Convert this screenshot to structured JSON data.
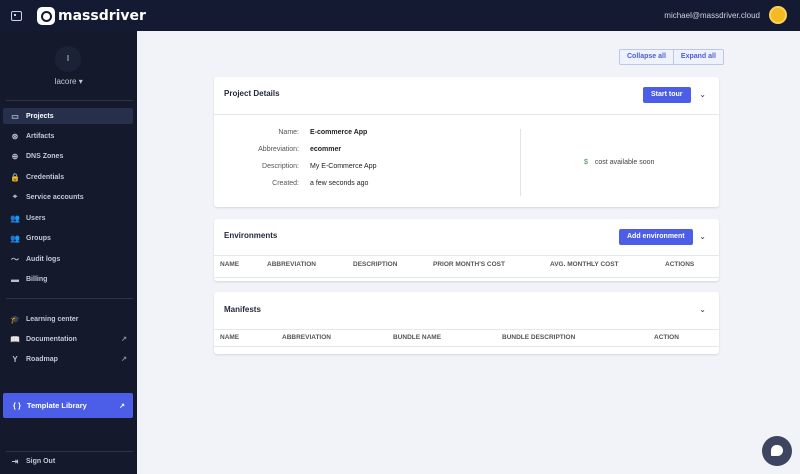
{
  "topbar": {
    "brand": "massdriver",
    "user_email": "michael@massdriver.cloud"
  },
  "sidebar": {
    "org_initial": "I",
    "org_name": "Iacore ▾",
    "items": [
      {
        "label": "Projects",
        "icon": "folder-icon",
        "glyph": "▭"
      },
      {
        "label": "Artifacts",
        "icon": "artifact-icon",
        "glyph": "⊛"
      },
      {
        "label": "DNS Zones",
        "icon": "globe-icon",
        "glyph": "⊕"
      },
      {
        "label": "Credentials",
        "icon": "lock-icon",
        "glyph": "🔒"
      },
      {
        "label": "Service accounts",
        "icon": "service-account-icon",
        "glyph": "⌖"
      },
      {
        "label": "Users",
        "icon": "users-icon",
        "glyph": "👥"
      },
      {
        "label": "Groups",
        "icon": "groups-icon",
        "glyph": "👥"
      },
      {
        "label": "Audit logs",
        "icon": "chart-line-icon",
        "glyph": "〜"
      },
      {
        "label": "Billing",
        "icon": "credit-card-icon",
        "glyph": "▬"
      }
    ],
    "links": [
      {
        "label": "Learning center",
        "icon": "graduation-cap-icon",
        "glyph": "🎓"
      },
      {
        "label": "Documentation",
        "icon": "book-icon",
        "glyph": "📖"
      },
      {
        "label": "Roadmap",
        "icon": "roadmap-icon",
        "glyph": "Y"
      }
    ],
    "template_library": "Template Library",
    "template_glyph": "{ }",
    "sign_out": "Sign Out"
  },
  "toolbar": {
    "collapse_all": "Collapse all",
    "expand_all": "Expand all"
  },
  "project_details": {
    "title": "Project Details",
    "start_tour": "Start tour",
    "fields": [
      {
        "label": "Name:",
        "value": "E-commerce App",
        "bold": true
      },
      {
        "label": "Abbreviation:",
        "value": "ecommer",
        "bold": true
      },
      {
        "label": "Description:",
        "value": "My E-Commerce App"
      },
      {
        "label": "Created:",
        "value": "a few seconds ago"
      }
    ],
    "cost_symbol": "$",
    "cost_text": "cost available soon"
  },
  "environments": {
    "title": "Environments",
    "add_button": "Add environment",
    "columns": [
      "NAME",
      "ABBREVIATION",
      "DESCRIPTION",
      "PRIOR MONTH'S COST",
      "AVG. MONTHLY COST",
      "ACTIONS"
    ]
  },
  "manifests": {
    "title": "Manifests",
    "columns": [
      "NAME",
      "ABBREVIATION",
      "BUNDLE NAME",
      "BUNDLE DESCRIPTION",
      "ACTION"
    ]
  }
}
